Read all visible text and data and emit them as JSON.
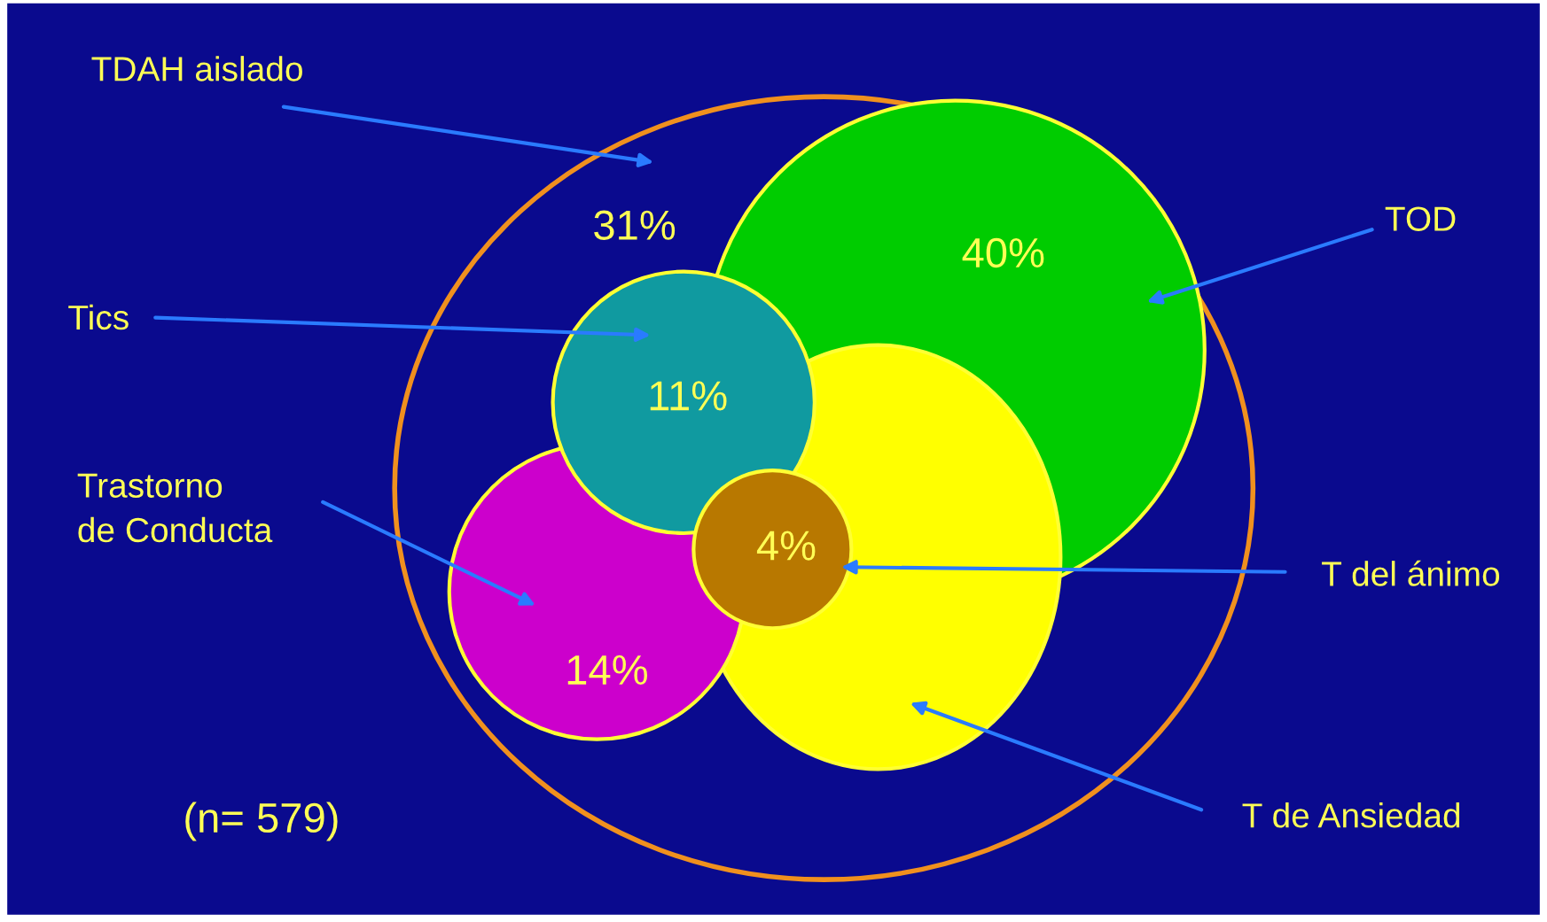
{
  "chart_data": {
    "type": "other",
    "categories": [
      "TDAH aislado",
      "TOD",
      "T de Ansiedad",
      "Trastorno\nde Conducta",
      "Tics",
      "T del ánimo"
    ],
    "colors": [
      "#f0901e",
      "#00cc00",
      "#ffff00",
      "#cc00cc",
      "#109aa0",
      "#b87800"
    ],
    "values": [
      31,
      40,
      null,
      14,
      11,
      4
    ],
    "value_labels": [
      "31%",
      "40%",
      null,
      "14%",
      "11%",
      "4%"
    ],
    "annotations": [
      "(n= 579)"
    ]
  }
}
